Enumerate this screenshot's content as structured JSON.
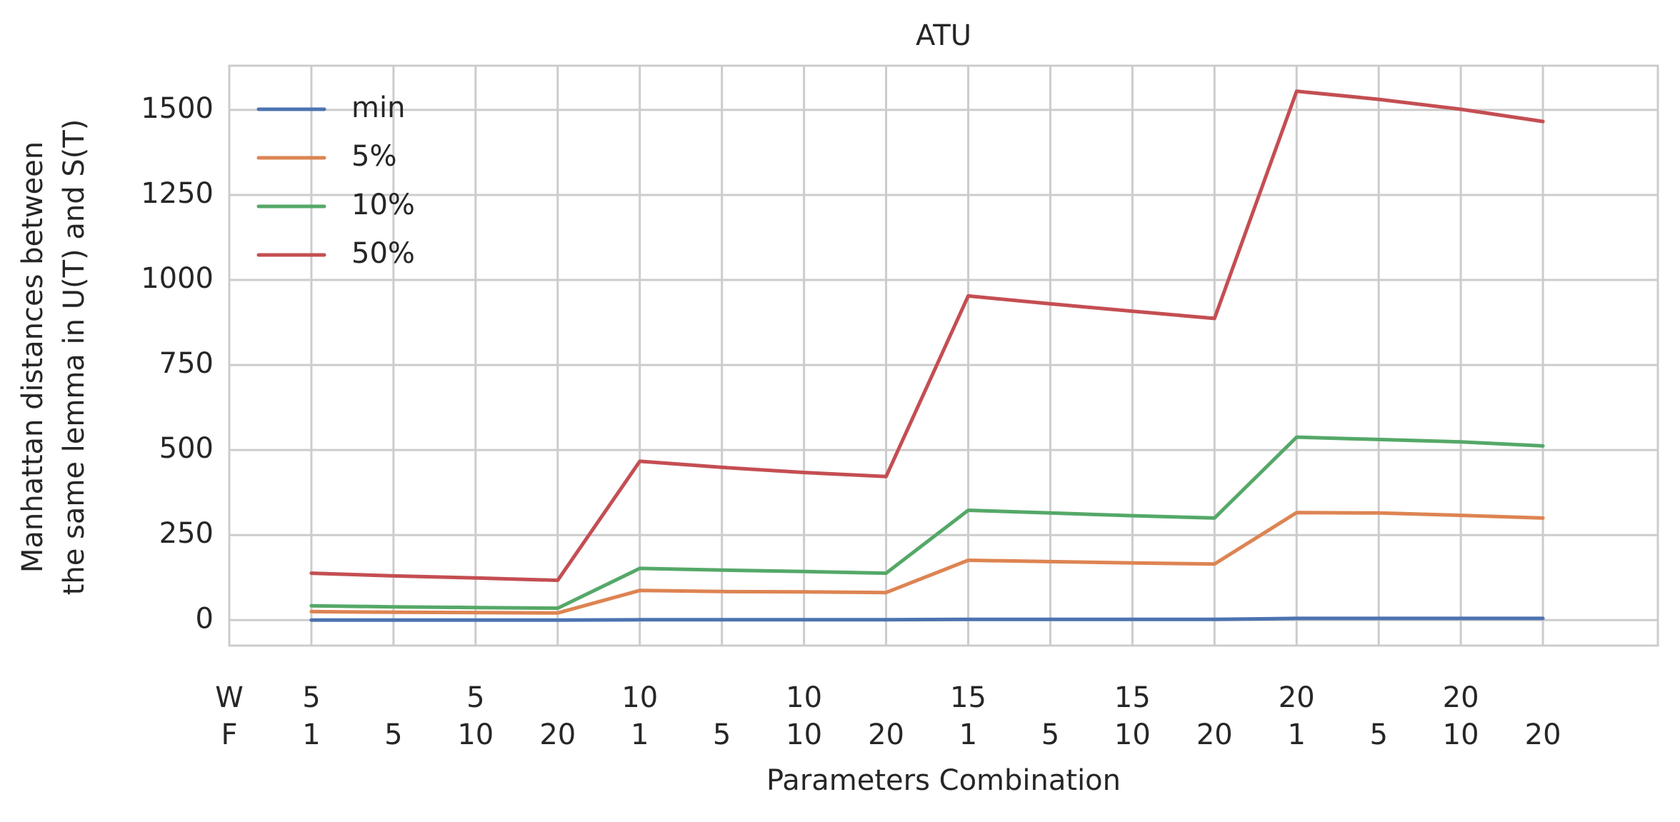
{
  "chart_data": {
    "type": "line",
    "title": "ATU",
    "xlabel": "Parameters Combination",
    "ylabel_lines": [
      "Manhattan distances between",
      "the same lemma in U(T) and S(T)"
    ],
    "row_labels": [
      "W",
      "F"
    ],
    "w_labels": [
      "5",
      "",
      "5",
      "",
      "10",
      "",
      "10",
      "",
      "15",
      "",
      "15",
      "",
      "20",
      "",
      "20",
      ""
    ],
    "f_labels": [
      "1",
      "5",
      "10",
      "20",
      "1",
      "5",
      "10",
      "20",
      "1",
      "5",
      "10",
      "20",
      "1",
      "5",
      "10",
      "20"
    ],
    "ylim": [
      -75,
      1630
    ],
    "yticks": [
      0,
      250,
      500,
      750,
      1000,
      1250,
      1500
    ],
    "xlim": [
      -1,
      16.4
    ],
    "grid": true,
    "legend_position": "top-left",
    "series": [
      {
        "name": "min",
        "color": "#4c72b0",
        "values": [
          0,
          0,
          0,
          0,
          1,
          1,
          1,
          1,
          2,
          2,
          2,
          2,
          5,
          5,
          5,
          5
        ]
      },
      {
        "name": "5%",
        "color": "#dd8452",
        "values": [
          25,
          23,
          22,
          21,
          87,
          84,
          83,
          81,
          176,
          172,
          168,
          165,
          316,
          315,
          308,
          300
        ]
      },
      {
        "name": "10%",
        "color": "#55a868",
        "values": [
          42,
          39,
          37,
          35,
          152,
          147,
          143,
          138,
          323,
          315,
          307,
          300,
          538,
          531,
          524,
          512
        ]
      },
      {
        "name": "50%",
        "color": "#c44e52",
        "values": [
          138,
          130,
          124,
          117,
          467,
          449,
          434,
          422,
          953,
          930,
          908,
          887,
          1555,
          1531,
          1502,
          1466
        ]
      }
    ]
  }
}
